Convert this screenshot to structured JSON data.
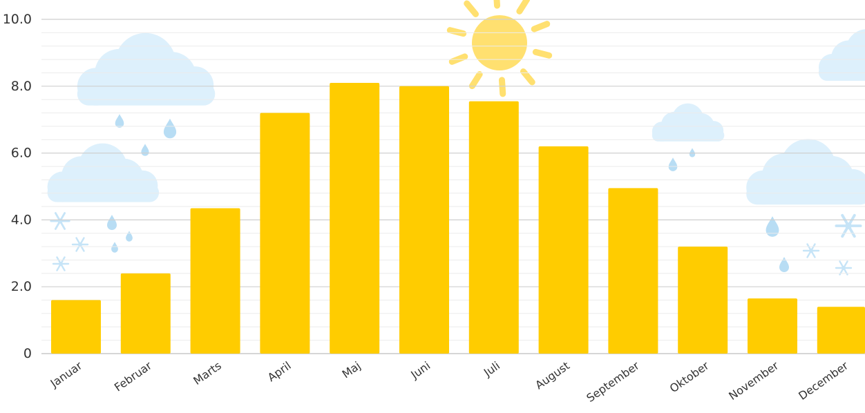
{
  "chart_data": {
    "type": "bar",
    "title": "",
    "xlabel": "",
    "ylabel": "",
    "categories": [
      "Januar",
      "Februar",
      "Marts",
      "April",
      "Maj",
      "Juni",
      "Juli",
      "August",
      "September",
      "Oktober",
      "November",
      "December"
    ],
    "values": [
      1.6,
      2.4,
      4.35,
      7.2,
      8.1,
      8.0,
      7.55,
      6.2,
      4.95,
      3.2,
      1.65,
      1.4
    ],
    "ylim": [
      0,
      10
    ],
    "yticks": [
      0,
      2,
      4,
      6,
      8,
      10
    ],
    "ytick_labels": [
      "0",
      "2.0",
      "4.0",
      "6.0",
      "8.0",
      "10.0"
    ],
    "grid": true,
    "bar_color": "#FFCC00",
    "major_grid_color": "#CFCFCF",
    "minor_grid_color": "#EBEBEB",
    "cloud_color": "#DDF0FC",
    "drop_color": "#B8DDF4",
    "sun_color": "#FFE070"
  }
}
